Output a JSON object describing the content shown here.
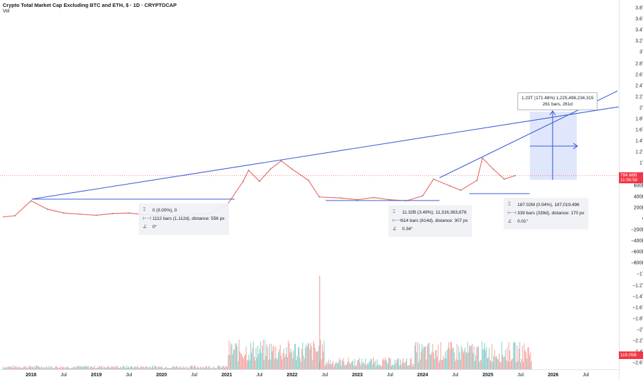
{
  "header": {
    "title": "Crypto Total Market Cap Excluding BTC and ETH, $ · 1D · CRYPTOCAP",
    "vol_label": "Vol"
  },
  "price_badge": {
    "value": "784.66B",
    "countdown": "11:56:58"
  },
  "volume_badge": {
    "value": "119.05B"
  },
  "colors": {
    "line": "#3a5bd9",
    "up": "#26a69a",
    "down": "#ef5350",
    "highlight": "#dbe3fb",
    "badge": "#f23645"
  },
  "y_axis_ticks": [
    "3.8T",
    "3.6T",
    "3.4T",
    "3.2T",
    "3T",
    "2.8T",
    "2.6T",
    "2.4T",
    "2.2T",
    "2T",
    "1.8T",
    "1.6T",
    "1.4T",
    "1.2T",
    "1T",
    "800B",
    "600B",
    "400B",
    "200B",
    "0",
    "−200B",
    "−400B",
    "−600B",
    "−800B",
    "−1T",
    "−1.2T",
    "−1.4T",
    "−1.6T",
    "−1.8T",
    "−2T",
    "−2.2T",
    "−2.4T",
    "−2.6T"
  ],
  "x_axis_ticks": [
    {
      "label": "2018",
      "bold": true
    },
    {
      "label": "Jul",
      "bold": false
    },
    {
      "label": "2019",
      "bold": true
    },
    {
      "label": "Jul",
      "bold": false
    },
    {
      "label": "2020",
      "bold": true
    },
    {
      "label": "Jul",
      "bold": false
    },
    {
      "label": "2021",
      "bold": true
    },
    {
      "label": "Jul",
      "bold": false
    },
    {
      "label": "2022",
      "bold": true
    },
    {
      "label": "Jul",
      "bold": false
    },
    {
      "label": "2023",
      "bold": true
    },
    {
      "label": "Jul",
      "bold": false
    },
    {
      "label": "2024",
      "bold": true
    },
    {
      "label": "Jul",
      "bold": false
    },
    {
      "label": "2025",
      "bold": true
    },
    {
      "label": "Jul",
      "bold": false
    },
    {
      "label": "2026",
      "bold": true
    },
    {
      "label": "Jul",
      "bold": false
    }
  ],
  "annotations": {
    "box1": {
      "price_change": "0 (0.00%), 0",
      "bars": "1112 bars (1,112d), distance: 556 px",
      "angle": "0°"
    },
    "box2": {
      "price_change": "11.32B (3.49%), 11,316,383,878",
      "bars": "614 bars (614d), distance: 307 px",
      "angle": "0.34°"
    },
    "box3": {
      "price_change": "187.02M (0.04%), 187,019,496",
      "bars": "339 bars (339d), distance: 170 px",
      "angle": "0.01°"
    },
    "measure": {
      "line1": "1.23T (171.48%) 1,225,498,234,315",
      "line2": "261 bars, 261d"
    }
  },
  "chart_data": {
    "type": "line",
    "title": "Crypto Total Market Cap Excluding BTC and ETH, $ · 1D · CRYPTOCAP",
    "y_unit": "USD",
    "ylim": [
      -2600000000000,
      3800000000000
    ],
    "x": [
      "2017-10",
      "2018-01",
      "2018-04",
      "2018-07",
      "2018-10",
      "2019-01",
      "2019-04",
      "2019-07",
      "2019-10",
      "2020-01",
      "2020-04",
      "2020-07",
      "2020-10",
      "2021-01",
      "2021-04",
      "2021-05",
      "2021-07",
      "2021-09",
      "2021-11",
      "2022-01",
      "2022-04",
      "2022-06",
      "2022-10",
      "2023-01",
      "2023-04",
      "2023-07",
      "2023-10",
      "2024-01",
      "2024-03",
      "2024-06",
      "2024-08",
      "2024-11",
      "2024-12",
      "2025-02",
      "2025-04",
      "2025-06"
    ],
    "series": [
      {
        "values": [
          60000000000.0,
          330000000000.0,
          180000000000.0,
          110000000000.0,
          90000000000.0,
          70000000000.0,
          100000000000.0,
          110000000000.0,
          80000000000.0,
          70000000000.0,
          60000000000.0,
          90000000000.0,
          110000000000.0,
          250000000000.0,
          680000000000.0,
          880000000000.0,
          680000000000.0,
          900000000000.0,
          1050000000000.0,
          900000000000.0,
          700000000000.0,
          400000000000.0,
          380000000000.0,
          350000000000.0,
          390000000000.0,
          350000000000.0,
          330000000000.0,
          420000000000.0,
          720000000000.0,
          600000000000.0,
          520000000000.0,
          700000000000.0,
          1100000000000.0,
          900000000000.0,
          720000000000.0,
          784660000000.0
        ]
      }
    ],
    "volume_peak": "about 100B per day, spikes to ~330B in mid-2022"
  }
}
